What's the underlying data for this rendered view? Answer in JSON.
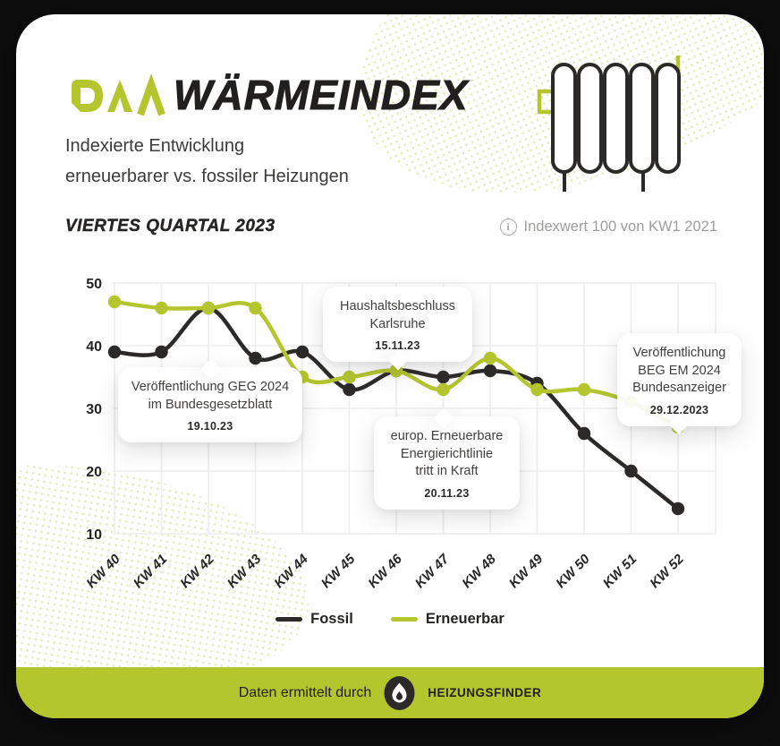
{
  "colors": {
    "green": "#b3c62e",
    "dark": "#2b2a28",
    "text_dark": "#21201e",
    "text_gray": "#9d9d9c",
    "grid": "#ededed",
    "card_bg": "#ffffff",
    "page_bg": "#0d0d0d"
  },
  "header": {
    "logo": "DAA",
    "title": "WÄRMEINDEX",
    "subtitle_line1": "Indexierte Entwicklung",
    "subtitle_line2": "erneuerbarer vs. fossiler Heizungen"
  },
  "section": {
    "heading": "VIERTES QUARTAL 2023",
    "index_note": "Indexwert 100 von KW1 2021",
    "info_icon": "i"
  },
  "chart_data": {
    "type": "line",
    "categories": [
      "KW 40",
      "KW 41",
      "KW 42",
      "KW 43",
      "KW 44",
      "KW 45",
      "KW 46",
      "KW 47",
      "KW 48",
      "KW 49",
      "KW 50",
      "KW 51",
      "KW 52"
    ],
    "series": [
      {
        "name": "Fossil",
        "color": "#2b2a28",
        "values": [
          39,
          39,
          46,
          38,
          39,
          33,
          36,
          35,
          36,
          34,
          26,
          20,
          14
        ]
      },
      {
        "name": "Erneuerbar",
        "color": "#b3c62e",
        "values": [
          47,
          46,
          46,
          46,
          35,
          35,
          36,
          33,
          38,
          33,
          33,
          31,
          27
        ]
      }
    ],
    "ylim": [
      10,
      50
    ],
    "yticks": [
      10,
      20,
      30,
      40,
      50
    ],
    "grid": true,
    "legend_position": "bottom",
    "annotations": [
      {
        "line1": "Veröffentlichung GEG 2024",
        "line2": "im Bundesgesetzblatt",
        "date": "19.10.23",
        "target": "KW 42",
        "pointer": "top"
      },
      {
        "line1": "Haushaltsbeschluss",
        "line2": "Karlsruhe",
        "date": "15.11.23",
        "target": "KW 46",
        "pointer": "bottom"
      },
      {
        "line1": "europ. Erneuerbare",
        "line2": "Energierichtlinie",
        "line3": "tritt in Kraft",
        "date": "20.11.23",
        "target": "KW 47",
        "pointer": "top"
      },
      {
        "line1": "Veröffentlichung",
        "line2": "BEG EM 2024",
        "line3": "Bundesanzeiger",
        "date": "29.12.2023",
        "target": "KW 52",
        "pointer": "bottom"
      }
    ]
  },
  "legend": {
    "items": [
      {
        "label": "Fossil",
        "color": "#2b2a28"
      },
      {
        "label": "Erneuerbar",
        "color": "#b3c62e"
      }
    ]
  },
  "footer": {
    "text": "Daten ermittelt durch",
    "brand": "HEIZUNGSFINDER",
    "flame_icon": "flame-icon"
  }
}
